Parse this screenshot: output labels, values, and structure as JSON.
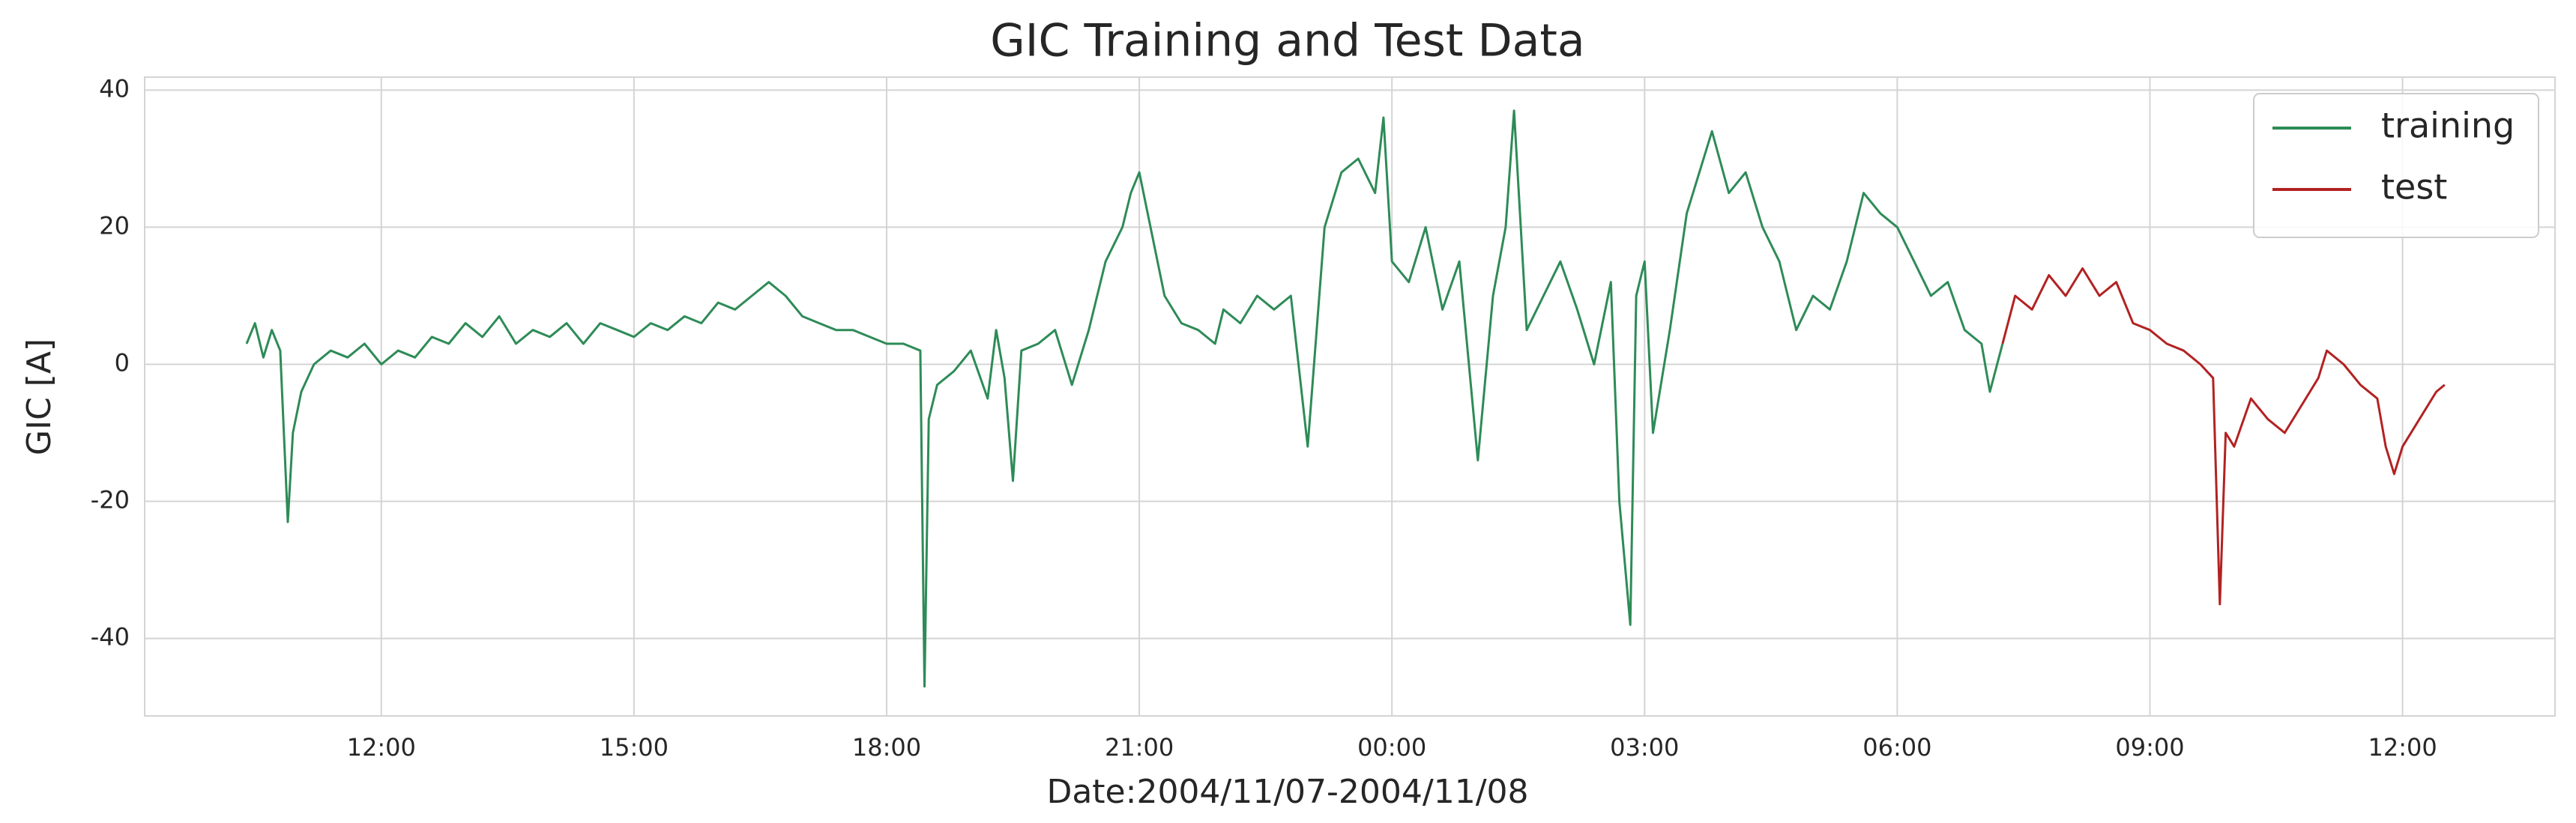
{
  "chart_data": {
    "type": "line",
    "title": "GIC Training and Test Data",
    "xlabel": "Date:2004/11/07-2004/11/08",
    "ylabel": "GIC [A]",
    "xlim": [
      9.19,
      37.81
    ],
    "ylim": [
      -51.3,
      41.9
    ],
    "xticks": [
      {
        "value": 12,
        "label": "12:00"
      },
      {
        "value": 15,
        "label": "15:00"
      },
      {
        "value": 18,
        "label": "18:00"
      },
      {
        "value": 21,
        "label": "21:00"
      },
      {
        "value": 24,
        "label": "00:00"
      },
      {
        "value": 27,
        "label": "03:00"
      },
      {
        "value": 30,
        "label": "06:00"
      },
      {
        "value": 33,
        "label": "09:00"
      },
      {
        "value": 36,
        "label": "12:00"
      }
    ],
    "yticks": [
      -40,
      -20,
      0,
      20,
      40
    ],
    "grid": true,
    "legend": "upper right",
    "series": [
      {
        "name": "training",
        "color": "#2e8b57",
        "x": [
          10.4,
          10.5,
          10.6,
          10.7,
          10.8,
          10.89,
          10.95,
          11.05,
          11.2,
          11.4,
          11.6,
          11.8,
          12.0,
          12.2,
          12.4,
          12.6,
          12.8,
          13.0,
          13.2,
          13.4,
          13.6,
          13.8,
          14.0,
          14.2,
          14.4,
          14.6,
          14.8,
          15.0,
          15.2,
          15.4,
          15.6,
          15.8,
          16.0,
          16.2,
          16.4,
          16.6,
          16.8,
          17.0,
          17.2,
          17.4,
          17.6,
          17.8,
          18.0,
          18.2,
          18.4,
          18.45,
          18.5,
          18.6,
          18.8,
          19.0,
          19.2,
          19.3,
          19.4,
          19.5,
          19.6,
          19.8,
          20.0,
          20.2,
          20.4,
          20.6,
          20.8,
          20.9,
          21.0,
          21.1,
          21.3,
          21.5,
          21.7,
          21.9,
          22.0,
          22.2,
          22.4,
          22.6,
          22.8,
          23.0,
          23.2,
          23.4,
          23.6,
          23.8,
          23.9,
          24.0,
          24.2,
          24.4,
          24.6,
          24.8,
          25.02,
          25.2,
          25.35,
          25.45,
          25.6,
          25.8,
          26.0,
          26.2,
          26.4,
          26.6,
          26.7,
          26.83,
          26.9,
          27.0,
          27.1,
          27.3,
          27.5,
          27.8,
          28.0,
          28.2,
          28.4,
          28.6,
          28.8,
          29.0,
          29.2,
          29.4,
          29.6,
          29.8,
          30.0,
          30.2,
          30.4,
          30.6,
          30.8,
          31.0,
          31.1,
          31.25
        ],
        "values": [
          3,
          6,
          1,
          5,
          2,
          -23,
          -10,
          -4,
          0,
          2,
          1,
          3,
          0,
          2,
          1,
          4,
          3,
          6,
          4,
          7,
          3,
          5,
          4,
          6,
          3,
          6,
          5,
          4,
          6,
          5,
          7,
          6,
          9,
          8,
          10,
          12,
          10,
          7,
          6,
          5,
          5,
          4,
          3,
          3,
          2,
          -47,
          -8,
          -3,
          -1,
          2,
          -5,
          5,
          -2,
          -17,
          2,
          3,
          5,
          -3,
          5,
          15,
          20,
          25,
          28,
          22,
          10,
          6,
          5,
          3,
          8,
          6,
          10,
          8,
          10,
          -12,
          20,
          28,
          30,
          25,
          36,
          15,
          12,
          20,
          8,
          15,
          -14,
          10,
          20,
          37,
          5,
          10,
          15,
          8,
          0,
          12,
          -20,
          -38,
          10,
          15,
          -10,
          5,
          22,
          34,
          25,
          28,
          20,
          15,
          5,
          10,
          8,
          15,
          25,
          22,
          20,
          15,
          10,
          12,
          5,
          3,
          -4,
          3
        ]
      },
      {
        "name": "test",
        "color": "#b22222",
        "x": [
          31.25,
          31.4,
          31.6,
          31.8,
          32.0,
          32.2,
          32.4,
          32.6,
          32.8,
          33.0,
          33.2,
          33.4,
          33.6,
          33.75,
          33.83,
          33.9,
          34.0,
          34.2,
          34.4,
          34.6,
          34.8,
          35.0,
          35.1,
          35.3,
          35.5,
          35.7,
          35.8,
          35.9,
          36.0,
          36.2,
          36.4,
          36.5
        ],
        "values": [
          3,
          10,
          8,
          13,
          10,
          14,
          10,
          12,
          6,
          5,
          3,
          2,
          0,
          -2,
          -35,
          -10,
          -12,
          -5,
          -8,
          -10,
          -6,
          -2,
          2,
          0,
          -3,
          -5,
          -12,
          -16,
          -12,
          -8,
          -4,
          -3
        ]
      }
    ]
  }
}
